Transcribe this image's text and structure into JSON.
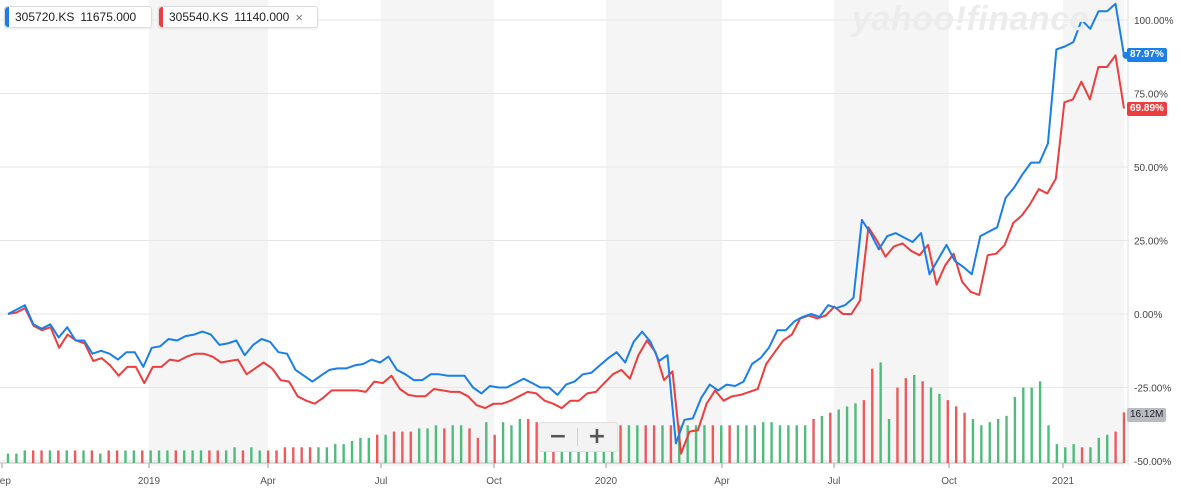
{
  "watermark": "yahoo!finance",
  "legend": [
    {
      "symbol": "305720.KS",
      "price": "11675.000",
      "color": "#1a7fe8"
    },
    {
      "symbol": "305540.KS",
      "price": "11140.000",
      "color": "#ec3e3f",
      "close": "×"
    }
  ],
  "zoom": {
    "minus": "−",
    "plus": "+"
  },
  "last_values": {
    "series1": "87.97%",
    "series2": "69.89%",
    "volume": "16.12M"
  },
  "colors": {
    "series1": "#1a7fe8",
    "series2": "#ec3e3f",
    "vol_up": "#4fbc7e",
    "vol_down": "#ec5a5c",
    "band": "#f5f5f5",
    "grid": "#e6e6e6"
  },
  "chart_data": {
    "type": "line",
    "y_axis": {
      "min": -50,
      "max": 100,
      "ticks": [
        100,
        75,
        50,
        25,
        0,
        -25,
        -50
      ],
      "tick_labels": [
        "100.00%",
        "75.00%",
        "50.00%",
        "25.00%",
        "0.00%",
        "-25.00%",
        "-50.00%"
      ],
      "position": "right"
    },
    "x_axis": {
      "labels": [
        "Sep",
        "2019",
        "Apr",
        "Jul",
        "Oct",
        "2020",
        "Apr",
        "Jul",
        "Oct",
        "2021"
      ]
    },
    "series": [
      {
        "name": "305720.KS",
        "values": [
          0,
          1.5,
          3,
          -3.5,
          -5,
          -3.5,
          -8,
          -4.5,
          -9,
          -9,
          -13.5,
          -12.5,
          -13.5,
          -15.5,
          -13,
          -13,
          -18,
          -11.5,
          -11,
          -8.5,
          -9,
          -7.5,
          -7,
          -6,
          -7,
          -10.5,
          -10,
          -9,
          -14,
          -10.5,
          -8.5,
          -9.5,
          -13,
          -13.5,
          -19,
          -21,
          -23,
          -21,
          -19,
          -18.5,
          -18.5,
          -17.5,
          -17,
          -15.5,
          -16.5,
          -14.5,
          -19,
          -20.5,
          -22.5,
          -22.5,
          -20.5,
          -20.5,
          -21,
          -21,
          -21,
          -25,
          -27,
          -24.5,
          -25,
          -25,
          -23.5,
          -22,
          -23.5,
          -25,
          -25,
          -27.5,
          -24,
          -23,
          -20.5,
          -20,
          -17.5,
          -15,
          -13,
          -16.5,
          -9.5,
          -6,
          -9.5,
          -16,
          -14,
          -44,
          -36,
          -35.5,
          -28.5,
          -24,
          -26,
          -24,
          -24.5,
          -23,
          -17,
          -15,
          -11.5,
          -5.5,
          -5.5,
          -2.5,
          -1,
          0,
          -1,
          3,
          2,
          3,
          5.5,
          32,
          27.5,
          22,
          26.5,
          27.5,
          26,
          24.5,
          27.5,
          13.5,
          18.5,
          23.5,
          18,
          16,
          13.5,
          26.5,
          28,
          29.5,
          39.5,
          43,
          47.5,
          51.5,
          51.5,
          58,
          90,
          91,
          92.5,
          100,
          97,
          103,
          103,
          105.5,
          87.97
        ]
      },
      {
        "name": "305540.KS",
        "values": [
          0,
          0.5,
          2,
          -4,
          -5.5,
          -4.5,
          -11.5,
          -7,
          -9,
          -10,
          -16,
          -15,
          -17.5,
          -21,
          -18,
          -18,
          -23.5,
          -18,
          -18,
          -15.5,
          -16,
          -14.5,
          -13.5,
          -13.5,
          -14.5,
          -16.5,
          -16,
          -15.5,
          -20.5,
          -18.5,
          -16.5,
          -18.5,
          -22.5,
          -23,
          -28,
          -29.5,
          -30.5,
          -28.5,
          -26,
          -26,
          -26,
          -26,
          -26.5,
          -23,
          -23.5,
          -21,
          -25.5,
          -27.5,
          -28,
          -28,
          -25.5,
          -26,
          -26.5,
          -26.5,
          -28,
          -31,
          -32,
          -30.5,
          -30.5,
          -29.5,
          -28,
          -26.5,
          -27,
          -29.5,
          -30.5,
          -32,
          -29.5,
          -29.5,
          -27,
          -26.5,
          -23.5,
          -20.5,
          -19,
          -22,
          -14,
          -9,
          -13,
          -22.5,
          -19.5,
          -47.5,
          -40,
          -39.5,
          -30.5,
          -26,
          -29.5,
          -28,
          -27.5,
          -26.5,
          -25.5,
          -17,
          -13,
          -9,
          -7,
          -1.5,
          -0.5,
          -1.5,
          -0.5,
          2.5,
          0,
          0,
          4.5,
          29.5,
          25,
          19.5,
          23,
          24,
          21.5,
          20,
          23.5,
          10,
          16.5,
          20.5,
          11,
          7.5,
          6.5,
          20,
          20.5,
          23.5,
          31,
          33.5,
          37.5,
          42.5,
          41,
          46,
          72,
          73,
          79,
          73,
          84,
          84,
          88,
          69.89
        ]
      }
    ],
    "volume": {
      "values": [
        3,
        3,
        4,
        4,
        4,
        4,
        4,
        4,
        4,
        4,
        4,
        3,
        4,
        4,
        4,
        4,
        4,
        4,
        4,
        4,
        4,
        4,
        4,
        4,
        4,
        4,
        4,
        5,
        4,
        5,
        4,
        4,
        4,
        5,
        5,
        5,
        5,
        5,
        5,
        6,
        6,
        7,
        8,
        8,
        9,
        9,
        10,
        10,
        10,
        11,
        11,
        12,
        11,
        12,
        12,
        11,
        8,
        13,
        9,
        13,
        12,
        14,
        14,
        13,
        12,
        11,
        13,
        12,
        12,
        13,
        12,
        12,
        12,
        12,
        12,
        12,
        12,
        12,
        12,
        12,
        12,
        12,
        12,
        12,
        12,
        12,
        12,
        12,
        12,
        12,
        13,
        13,
        12,
        12,
        12,
        12,
        14,
        15,
        16,
        17,
        18,
        19,
        20,
        30,
        32,
        14,
        24,
        27,
        28,
        26,
        24,
        22,
        20,
        18,
        16,
        14,
        12,
        13,
        14,
        15,
        21,
        24,
        24,
        26,
        12,
        6,
        5,
        6,
        5,
        5,
        8,
        9,
        10,
        16.12
      ]
    }
  }
}
